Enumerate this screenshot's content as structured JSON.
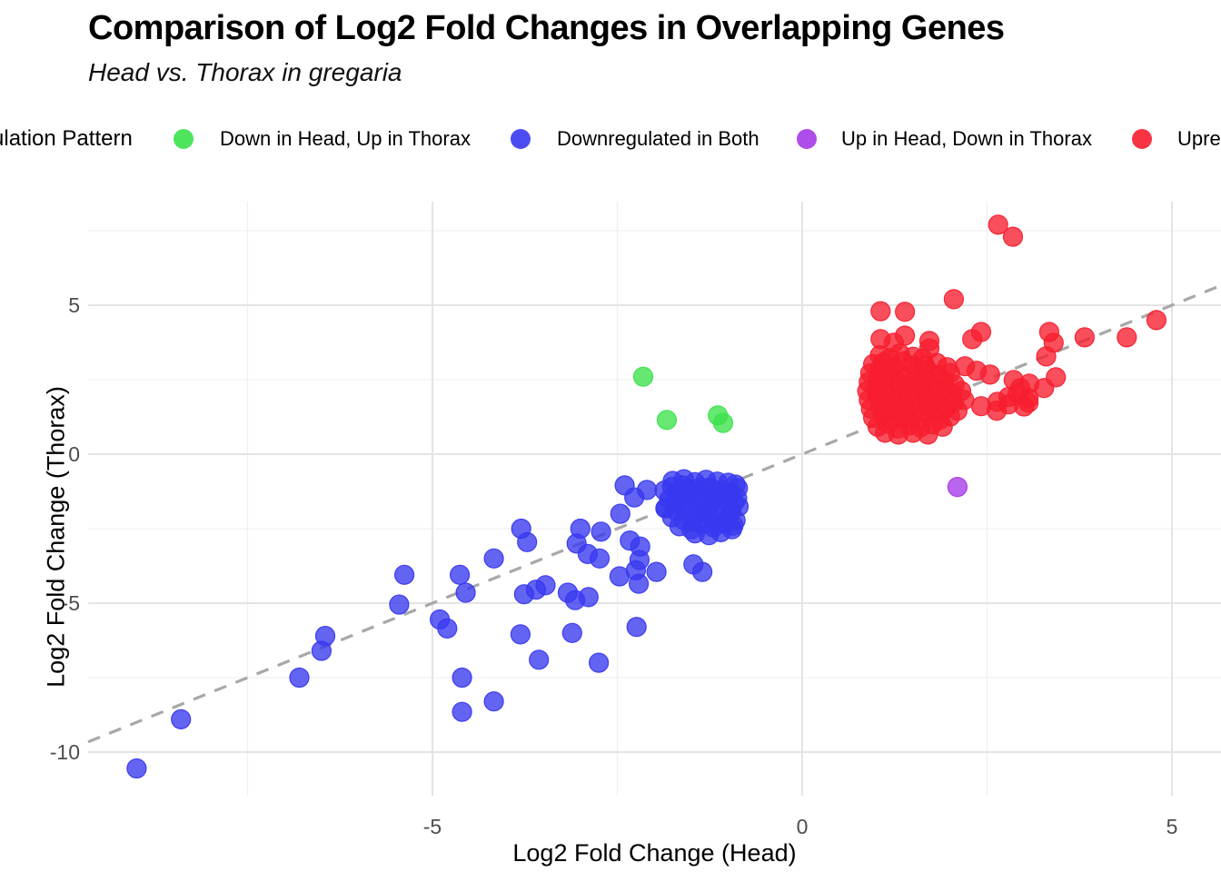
{
  "header": {
    "title": "Comparison of Log2 Fold Changes in Overlapping Genes",
    "subtitle": "Head vs. Thorax in gregaria"
  },
  "legend": {
    "title": "Regulation Pattern",
    "position": "top",
    "items": [
      {
        "label": "Down in Head, Up in Thorax",
        "color": "#3be14b"
      },
      {
        "label": "Downregulated in Both",
        "color": "#3838ef"
      },
      {
        "label": "Up in Head, Down in Thorax",
        "color": "#a63ae8"
      },
      {
        "label": "Upregulated in Both",
        "color": "#f71e2e"
      }
    ]
  },
  "chart_data": {
    "type": "scatter",
    "title": "Comparison of Log2 Fold Changes in Overlapping Genes",
    "subtitle": "Head vs. Thorax in gregaria",
    "xlabel": "Log2 Fold Change (Head)",
    "ylabel": "Log2 Fold Change (Thorax)",
    "xlim": [
      -9.66,
      5.66
    ],
    "ylim": [
      -11.45,
      8.45
    ],
    "grid": true,
    "legend_position": "top",
    "x_ticks": [
      {
        "value": -5,
        "label": "-5"
      },
      {
        "value": 0,
        "label": "0"
      },
      {
        "value": 5,
        "label": "5"
      }
    ],
    "y_ticks": [
      {
        "value": 5,
        "label": "5"
      },
      {
        "value": 0,
        "label": "0"
      },
      {
        "value": -5,
        "label": "-5"
      },
      {
        "value": -10,
        "label": "-10"
      }
    ],
    "x_minor_gridlines": [
      -7.5,
      -2.5,
      2.5
    ],
    "y_minor_gridlines": [
      7.5,
      2.5,
      -2.5,
      -7.5
    ],
    "reference_line": {
      "equation": "y = x",
      "style": "dashed",
      "color": "#a8a8a8"
    },
    "series": [
      {
        "name": "Down in Head, Up in Thorax",
        "color": "#3be14b",
        "points": [
          [
            -2.15,
            2.6
          ],
          [
            -1.83,
            1.15
          ],
          [
            -1.14,
            1.3
          ],
          [
            -1.07,
            1.05
          ]
        ]
      },
      {
        "name": "Downregulated in Both",
        "color": "#3838ef",
        "points": [
          [
            -9.0,
            -10.55
          ],
          [
            -8.4,
            -8.9
          ],
          [
            -6.8,
            -7.5
          ],
          [
            -6.45,
            -6.1
          ],
          [
            -6.5,
            -6.6
          ],
          [
            -5.38,
            -4.05
          ],
          [
            -5.45,
            -5.05
          ],
          [
            -4.9,
            -5.55
          ],
          [
            -4.8,
            -5.85
          ],
          [
            -4.63,
            -4.05
          ],
          [
            -4.55,
            -4.65
          ],
          [
            -4.6,
            -7.5
          ],
          [
            -4.6,
            -8.65
          ],
          [
            -4.17,
            -8.3
          ],
          [
            -4.17,
            -3.5
          ],
          [
            -3.8,
            -2.5
          ],
          [
            -3.72,
            -2.95
          ],
          [
            -3.76,
            -4.7
          ],
          [
            -3.6,
            -4.55
          ],
          [
            -3.47,
            -4.4
          ],
          [
            -3.81,
            -6.05
          ],
          [
            -3.56,
            -6.9
          ],
          [
            -3.17,
            -4.65
          ],
          [
            -3.07,
            -4.9
          ],
          [
            -2.89,
            -4.8
          ],
          [
            -3.11,
            -6.0
          ],
          [
            -2.75,
            -7.0
          ],
          [
            -2.24,
            -5.8
          ],
          [
            -3.05,
            -3.0
          ],
          [
            -3.0,
            -2.5
          ],
          [
            -2.9,
            -3.35
          ],
          [
            -2.74,
            -3.5
          ],
          [
            -2.72,
            -2.6
          ],
          [
            -2.46,
            -2.0
          ],
          [
            -2.4,
            -1.05
          ],
          [
            -2.33,
            -2.9
          ],
          [
            -2.27,
            -1.45
          ],
          [
            -2.25,
            -3.9
          ],
          [
            -2.47,
            -4.1
          ],
          [
            -2.21,
            -4.35
          ],
          [
            -2.2,
            -3.55
          ],
          [
            -2.19,
            -3.1
          ],
          [
            -2.1,
            -1.2
          ],
          [
            -1.97,
            -3.95
          ],
          [
            -1.84,
            -1.8
          ],
          [
            -1.76,
            -1.1
          ],
          [
            -1.72,
            -1.65
          ],
          [
            -1.47,
            -3.7
          ],
          [
            -1.35,
            -3.95
          ],
          [
            -1.75,
            -0.9
          ],
          [
            -1.6,
            -0.84
          ],
          [
            -1.45,
            -0.94
          ],
          [
            -1.3,
            -0.86
          ],
          [
            -1.15,
            -0.92
          ],
          [
            -1.0,
            -0.96
          ],
          [
            -0.9,
            -1.02
          ],
          [
            -1.86,
            -1.22
          ],
          [
            -1.7,
            -1.3
          ],
          [
            -1.55,
            -1.16
          ],
          [
            -1.4,
            -1.26
          ],
          [
            -1.25,
            -1.12
          ],
          [
            -1.1,
            -1.22
          ],
          [
            -0.96,
            -1.3
          ],
          [
            -0.87,
            -1.14
          ],
          [
            -1.8,
            -1.52
          ],
          [
            -1.65,
            -1.62
          ],
          [
            -1.5,
            -1.46
          ],
          [
            -1.35,
            -1.56
          ],
          [
            -1.2,
            -1.42
          ],
          [
            -1.05,
            -1.52
          ],
          [
            -0.92,
            -1.62
          ],
          [
            -1.85,
            -1.82
          ],
          [
            -1.7,
            -1.92
          ],
          [
            -1.55,
            -1.76
          ],
          [
            -1.4,
            -1.86
          ],
          [
            -1.25,
            -1.72
          ],
          [
            -1.1,
            -1.82
          ],
          [
            -0.96,
            -1.92
          ],
          [
            -0.86,
            -1.76
          ],
          [
            -1.76,
            -2.12
          ],
          [
            -1.6,
            -2.22
          ],
          [
            -1.45,
            -2.06
          ],
          [
            -1.3,
            -2.16
          ],
          [
            -1.15,
            -2.02
          ],
          [
            -1.0,
            -2.12
          ],
          [
            -0.9,
            -2.22
          ],
          [
            -1.66,
            -2.42
          ],
          [
            -1.5,
            -2.52
          ],
          [
            -1.35,
            -2.36
          ],
          [
            -1.2,
            -2.46
          ],
          [
            -1.05,
            -2.32
          ],
          [
            -0.95,
            -2.52
          ],
          [
            -1.45,
            -2.66
          ],
          [
            -1.26,
            -2.72
          ],
          [
            -1.1,
            -2.62
          ],
          [
            -1.52,
            -1.3
          ],
          [
            -1.38,
            -1.12
          ],
          [
            -1.22,
            -1.58
          ],
          [
            -1.08,
            -1.38
          ],
          [
            -1.32,
            -1.96
          ],
          [
            -1.18,
            -2.3
          ],
          [
            -0.93,
            -2.4
          ],
          [
            -1.62,
            -1.05
          ],
          [
            -0.88,
            -1.48
          ],
          [
            -1.48,
            -2.26
          ]
        ]
      },
      {
        "name": "Up in Head, Down in Thorax",
        "color": "#a63ae8",
        "points": [
          [
            2.1,
            -1.1
          ]
        ]
      },
      {
        "name": "Upregulated in Both",
        "color": "#f71e2e",
        "points": [
          [
            2.65,
            7.7
          ],
          [
            2.85,
            7.3
          ],
          [
            2.05,
            5.2
          ],
          [
            1.06,
            4.8
          ],
          [
            1.39,
            4.78
          ],
          [
            4.79,
            4.5
          ],
          [
            4.39,
            3.92
          ],
          [
            3.82,
            3.92
          ],
          [
            3.34,
            4.1
          ],
          [
            3.4,
            3.74
          ],
          [
            3.3,
            3.28
          ],
          [
            2.3,
            3.86
          ],
          [
            2.42,
            4.1
          ],
          [
            1.06,
            3.86
          ],
          [
            1.24,
            3.74
          ],
          [
            1.39,
            3.98
          ],
          [
            1.72,
            3.8
          ],
          [
            1.72,
            3.55
          ],
          [
            3.43,
            2.58
          ],
          [
            3.27,
            2.22
          ],
          [
            3.06,
            1.88
          ],
          [
            2.91,
            2.03
          ],
          [
            2.86,
            2.49
          ],
          [
            2.79,
            1.67
          ],
          [
            3.06,
            1.73
          ],
          [
            2.64,
            1.76
          ],
          [
            2.79,
            1.92
          ],
          [
            2.63,
            1.46
          ],
          [
            2.95,
            2.22
          ],
          [
            3.07,
            2.37
          ],
          [
            2.42,
            1.61
          ],
          [
            2.36,
            2.8
          ],
          [
            2.54,
            2.67
          ],
          [
            2.2,
            2.95
          ],
          [
            3.0,
            1.6
          ],
          [
            1.05,
            3.32
          ],
          [
            1.18,
            3.22
          ],
          [
            1.32,
            3.38
          ],
          [
            1.5,
            3.27
          ],
          [
            1.63,
            3.2
          ],
          [
            0.96,
            3.02
          ],
          [
            1.1,
            3.08
          ],
          [
            1.23,
            2.93
          ],
          [
            1.36,
            3.12
          ],
          [
            1.5,
            2.98
          ],
          [
            1.66,
            2.96
          ],
          [
            1.82,
            3.06
          ],
          [
            1.96,
            2.92
          ],
          [
            0.92,
            2.72
          ],
          [
            1.05,
            2.83
          ],
          [
            1.17,
            2.63
          ],
          [
            1.3,
            2.76
          ],
          [
            1.43,
            2.6
          ],
          [
            1.56,
            2.7
          ],
          [
            1.69,
            2.82
          ],
          [
            1.83,
            2.66
          ],
          [
            2.0,
            2.72
          ],
          [
            0.9,
            2.42
          ],
          [
            1.03,
            2.52
          ],
          [
            1.15,
            2.33
          ],
          [
            1.27,
            2.47
          ],
          [
            1.4,
            2.31
          ],
          [
            1.53,
            2.42
          ],
          [
            1.66,
            2.52
          ],
          [
            1.79,
            2.36
          ],
          [
            1.92,
            2.46
          ],
          [
            2.06,
            2.34
          ],
          [
            0.88,
            2.12
          ],
          [
            1.0,
            2.22
          ],
          [
            1.13,
            2.04
          ],
          [
            1.25,
            2.16
          ],
          [
            1.37,
            2.02
          ],
          [
            1.5,
            2.12
          ],
          [
            1.63,
            2.22
          ],
          [
            1.76,
            2.06
          ],
          [
            1.89,
            2.16
          ],
          [
            2.02,
            2.04
          ],
          [
            2.15,
            2.12
          ],
          [
            0.9,
            1.82
          ],
          [
            1.02,
            1.92
          ],
          [
            1.14,
            1.74
          ],
          [
            1.27,
            1.86
          ],
          [
            1.4,
            1.72
          ],
          [
            1.52,
            1.82
          ],
          [
            1.65,
            1.92
          ],
          [
            1.78,
            1.76
          ],
          [
            1.91,
            1.86
          ],
          [
            2.05,
            1.74
          ],
          [
            2.19,
            1.82
          ],
          [
            0.93,
            1.52
          ],
          [
            1.06,
            1.62
          ],
          [
            1.18,
            1.44
          ],
          [
            1.31,
            1.56
          ],
          [
            1.44,
            1.42
          ],
          [
            1.56,
            1.52
          ],
          [
            1.69,
            1.63
          ],
          [
            1.82,
            1.46
          ],
          [
            1.95,
            1.56
          ],
          [
            2.1,
            1.46
          ],
          [
            0.96,
            1.22
          ],
          [
            1.09,
            1.32
          ],
          [
            1.21,
            1.14
          ],
          [
            1.34,
            1.26
          ],
          [
            1.46,
            1.12
          ],
          [
            1.59,
            1.22
          ],
          [
            1.72,
            1.32
          ],
          [
            1.86,
            1.16
          ],
          [
            2.0,
            1.26
          ],
          [
            1.02,
            0.92
          ],
          [
            1.16,
            1.02
          ],
          [
            1.3,
            0.86
          ],
          [
            1.45,
            0.96
          ],
          [
            1.6,
            0.9
          ],
          [
            1.76,
            1.0
          ],
          [
            1.9,
            0.92
          ],
          [
            1.12,
            0.72
          ],
          [
            1.3,
            0.66
          ],
          [
            1.5,
            0.72
          ],
          [
            1.7,
            0.66
          ]
        ]
      }
    ]
  }
}
